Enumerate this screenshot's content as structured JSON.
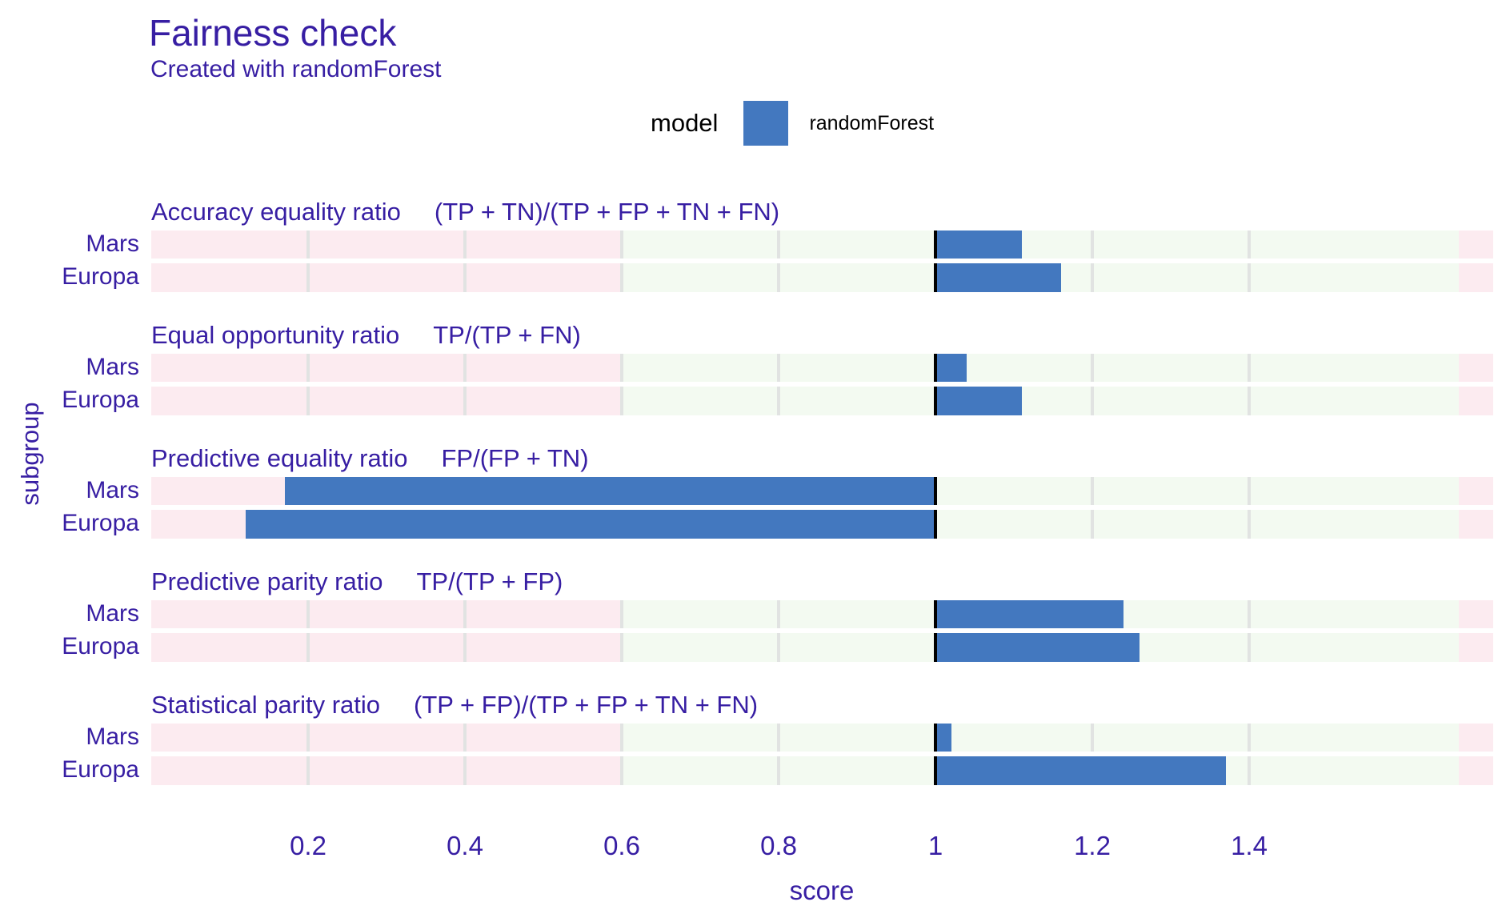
{
  "header": {
    "title": "Fairness check",
    "subtitle": "Created with randomForest"
  },
  "legend": {
    "title": "model",
    "entry": "randomForest"
  },
  "axes": {
    "x_label": "score",
    "y_label": "subgroup"
  },
  "colors": {
    "accent_text": "#371ea3",
    "bar": "#4378bf",
    "zone_unfair": "#fcebf0",
    "zone_fair": "#f3faf1",
    "gridline": "#e1e3e2",
    "reference_line": "#000000",
    "legend_text": "#000000"
  },
  "chart_data": {
    "type": "bar",
    "orientation": "horizontal",
    "title": "Fairness check",
    "subtitle": "Created with randomForest",
    "xlabel": "score",
    "ylabel": "subgroup",
    "model": "randomForest",
    "categories": [
      "Mars",
      "Europa"
    ],
    "baseline": 1,
    "xlim": [
      0,
      1.711
    ],
    "x_ticks": [
      {
        "value": 0.2,
        "label": "0.2"
      },
      {
        "value": 0.4,
        "label": "0.4"
      },
      {
        "value": 0.6,
        "label": "0.6"
      },
      {
        "value": 0.8,
        "label": "0.8"
      },
      {
        "value": 1,
        "label": "1"
      },
      {
        "value": 1.2,
        "label": "1.2"
      },
      {
        "value": 1.4,
        "label": "1.4"
      }
    ],
    "fair_zone": [
      0.6,
      1.667
    ],
    "reference_line": 1,
    "grid": true,
    "legend_position": "top-center",
    "panels": [
      {
        "metric": "Accuracy equality ratio",
        "formula": "(TP + TN)/(TP + FP + TN + FN)",
        "values": [
          1.11,
          1.16
        ]
      },
      {
        "metric": "Equal opportunity ratio",
        "formula": "TP/(TP + FN)",
        "values": [
          1.04,
          1.11
        ]
      },
      {
        "metric": "Predictive equality ratio",
        "formula": "FP/(FP + TN)",
        "values": [
          0.17,
          0.12
        ]
      },
      {
        "metric": "Predictive parity ratio",
        "formula": "TP/(TP + FP)",
        "values": [
          1.24,
          1.26
        ]
      },
      {
        "metric": "Statistical parity ratio",
        "formula": "(TP + FP)/(TP + FP + TN + FN)",
        "values": [
          1.02,
          1.37
        ]
      }
    ]
  }
}
